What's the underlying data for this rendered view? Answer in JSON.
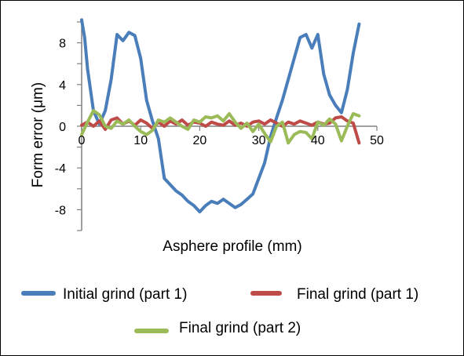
{
  "chart_data": {
    "type": "line",
    "title": "",
    "xlabel": "Asphere profile (mm)",
    "ylabel": "Form error (μm)",
    "xlim": [
      0,
      50
    ],
    "ylim": [
      -10,
      10
    ],
    "x_ticks": [
      "0",
      "10",
      "20",
      "30",
      "40",
      "50"
    ],
    "y_ticks": [
      "8",
      "4",
      "0",
      "-4",
      "-8"
    ],
    "grid": false,
    "legend_position": "bottom",
    "series": [
      {
        "name": "Initial grind (part 1)",
        "color": "#4a7ebb",
        "x": [
          0,
          0.5,
          1,
          2,
          3,
          4,
          5,
          6,
          7,
          8,
          9,
          10,
          11,
          12,
          13,
          14,
          15,
          16,
          17,
          18,
          19,
          20,
          21,
          22,
          23,
          24,
          25,
          26,
          27,
          28,
          29,
          30,
          31,
          32,
          33,
          34,
          35,
          36,
          37,
          38,
          39,
          40,
          41,
          42,
          43,
          44,
          45,
          46,
          47
        ],
        "y": [
          10.2,
          8.5,
          5.5,
          1.5,
          0.2,
          1.5,
          4.5,
          8.8,
          8.2,
          9.0,
          8.7,
          6.5,
          2.5,
          0.5,
          -1.2,
          -5.0,
          -5.6,
          -6.2,
          -6.6,
          -7.2,
          -7.6,
          -8.2,
          -7.6,
          -7.2,
          -7.4,
          -7.0,
          -7.4,
          -7.8,
          -7.5,
          -7.0,
          -6.5,
          -5.0,
          -3.5,
          -1.0,
          0.8,
          2.5,
          4.5,
          6.5,
          8.5,
          8.8,
          7.5,
          8.8,
          5.0,
          3.0,
          2.0,
          1.3,
          3.5,
          7.0,
          9.8
        ]
      },
      {
        "name": "Final grind (part 1)",
        "color": "#be4b48",
        "x": [
          0,
          1,
          2,
          3,
          4,
          5,
          6,
          7,
          8,
          9,
          10,
          11,
          12,
          13,
          14,
          15,
          16,
          17,
          18,
          19,
          20,
          21,
          22,
          23,
          24,
          25,
          26,
          27,
          28,
          29,
          30,
          31,
          32,
          33,
          34,
          35,
          36,
          37,
          38,
          39,
          40,
          41,
          42,
          43,
          44,
          45,
          46,
          47
        ],
        "y": [
          0.1,
          0.4,
          0.0,
          0.5,
          -0.3,
          0.6,
          0.8,
          0.2,
          0.5,
          0.1,
          0.6,
          0.3,
          -0.2,
          0.4,
          0.0,
          0.5,
          0.2,
          0.6,
          0.1,
          0.4,
          0.3,
          0.0,
          0.4,
          0.2,
          0.1,
          0.5,
          0.1,
          0.3,
          0.0,
          0.4,
          0.5,
          0.2,
          0.6,
          0.3,
          0.0,
          0.4,
          0.2,
          0.5,
          0.3,
          0.1,
          0.4,
          0.2,
          0.3,
          0.8,
          0.9,
          0.5,
          0.3,
          -1.6
        ]
      },
      {
        "name": "Final grind (part 2)",
        "color": "#9bbb59",
        "x": [
          0,
          1,
          2,
          3,
          4,
          5,
          6,
          7,
          8,
          9,
          10,
          11,
          12,
          13,
          14,
          15,
          16,
          17,
          18,
          19,
          20,
          21,
          22,
          23,
          24,
          25,
          26,
          27,
          28,
          29,
          30,
          31,
          32,
          33,
          34,
          35,
          36,
          37,
          38,
          39,
          40,
          41,
          42,
          43,
          44,
          45,
          46,
          47
        ],
        "y": [
          -0.8,
          0.4,
          1.5,
          1.1,
          0.0,
          -0.2,
          0.5,
          0.2,
          0.6,
          0.0,
          -0.5,
          -0.8,
          -0.4,
          0.6,
          0.4,
          0.8,
          0.4,
          0.0,
          -0.3,
          0.6,
          0.4,
          0.9,
          0.8,
          1.0,
          0.5,
          1.2,
          0.4,
          -0.2,
          0.3,
          -0.5,
          0.2,
          -0.7,
          -1.5,
          0.0,
          0.4,
          -1.6,
          -0.8,
          -0.5,
          -0.6,
          -1.2,
          0.4,
          0.1,
          0.7,
          0.2,
          -1.4,
          0.0,
          1.2,
          1.0
        ]
      }
    ]
  }
}
